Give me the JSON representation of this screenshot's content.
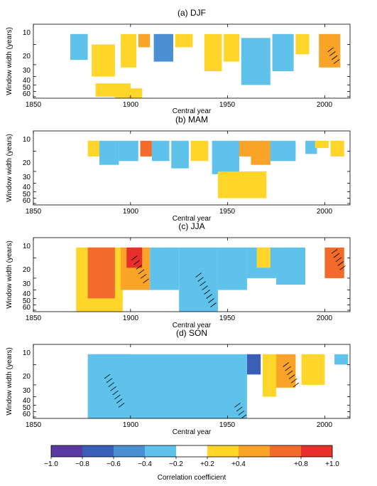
{
  "chart_data": [
    {
      "type": "heatmap",
      "title": "(a) DJF",
      "xlabel": "Central year",
      "ylabel": "Window width (years)",
      "xlim": [
        1850,
        2013
      ],
      "ylim": [
        5,
        63
      ],
      "y_scale": "log",
      "xticks": [
        1850,
        1900,
        1950,
        2000
      ],
      "yticks": [
        10,
        20,
        30,
        40,
        50,
        60
      ],
      "features": [
        {
          "x_start": 1869,
          "x_end": 1878,
          "w_top": 7,
          "w_bottom": 17,
          "value": -0.3
        },
        {
          "x_start": 1880,
          "x_end": 1892,
          "w_top": 10,
          "w_bottom": 30,
          "value": 0.3
        },
        {
          "x_start": 1895,
          "x_end": 1903,
          "w_top": 7,
          "w_bottom": 22,
          "value": 0.3
        },
        {
          "x_start": 1904,
          "x_end": 1910,
          "w_top": 7,
          "w_bottom": 11,
          "value": 0.5
        },
        {
          "x_start": 1912,
          "x_end": 1922,
          "w_top": 7,
          "w_bottom": 18,
          "value": -0.5
        },
        {
          "x_start": 1923,
          "x_end": 1932,
          "w_top": 7,
          "w_bottom": 11,
          "value": 0.3
        },
        {
          "x_start": 1938,
          "x_end": 1947,
          "w_top": 7,
          "w_bottom": 25,
          "value": 0.3
        },
        {
          "x_start": 1948,
          "x_end": 1956,
          "w_top": 7,
          "w_bottom": 18,
          "value": 0.3
        },
        {
          "x_start": 1957,
          "x_end": 1972,
          "w_top": 8,
          "w_bottom": 40,
          "value": -0.35
        },
        {
          "x_start": 1973,
          "x_end": 1984,
          "w_top": 7,
          "w_bottom": 25,
          "value": -0.3
        },
        {
          "x_start": 1985,
          "x_end": 1992,
          "w_top": 7,
          "w_bottom": 14,
          "value": 0.3
        },
        {
          "x_start": 1997,
          "x_end": 2008,
          "w_top": 7,
          "w_bottom": 22,
          "value": 0.55
        },
        {
          "x_start": 1882,
          "x_end": 1900,
          "w_top": 38,
          "w_bottom": 60,
          "value": 0.3
        },
        {
          "x_start": 1892,
          "x_end": 1906,
          "w_top": 45,
          "w_bottom": 63,
          "value": 0.3
        }
      ],
      "hatched": [
        {
          "x": 2003,
          "w_top": 12,
          "w_bottom": 18
        }
      ]
    },
    {
      "type": "heatmap",
      "title": "(b) MAM",
      "xlabel": "Central year",
      "ylabel": "Window width (years)",
      "xlim": [
        1850,
        2013
      ],
      "ylim": [
        5,
        63
      ],
      "y_scale": "log",
      "xticks": [
        1850,
        1900,
        1950,
        2000
      ],
      "yticks": [
        10,
        20,
        30,
        40,
        50,
        60
      ],
      "features": [
        {
          "x_start": 1878,
          "x_end": 1884,
          "w_top": 7,
          "w_bottom": 12,
          "value": 0.3
        },
        {
          "x_start": 1884,
          "x_end": 1894,
          "w_top": 7,
          "w_bottom": 16,
          "value": -0.3
        },
        {
          "x_start": 1894,
          "x_end": 1904,
          "w_top": 7,
          "w_bottom": 14,
          "value": -0.3
        },
        {
          "x_start": 1905,
          "x_end": 1911,
          "w_top": 7,
          "w_bottom": 12,
          "value": 0.6
        },
        {
          "x_start": 1911,
          "x_end": 1920,
          "w_top": 7,
          "w_bottom": 14,
          "value": -0.3
        },
        {
          "x_start": 1921,
          "x_end": 1930,
          "w_top": 7,
          "w_bottom": 18,
          "value": -0.3
        },
        {
          "x_start": 1931,
          "x_end": 1940,
          "w_top": 7,
          "w_bottom": 14,
          "value": 0.3
        },
        {
          "x_start": 1942,
          "x_end": 1956,
          "w_top": 7,
          "w_bottom": 22,
          "value": -0.35
        },
        {
          "x_start": 1956,
          "x_end": 1964,
          "w_top": 7,
          "w_bottom": 12,
          "value": 0.4
        },
        {
          "x_start": 1962,
          "x_end": 1972,
          "w_top": 7,
          "w_bottom": 16,
          "value": 0.55
        },
        {
          "x_start": 1972,
          "x_end": 1985,
          "w_top": 7,
          "w_bottom": 14,
          "value": -0.3
        },
        {
          "x_start": 1990,
          "x_end": 1996,
          "w_top": 7,
          "w_bottom": 11,
          "value": -0.3
        },
        {
          "x_start": 1995,
          "x_end": 2002,
          "w_top": 7,
          "w_bottom": 9,
          "value": 0.3
        },
        {
          "x_start": 2003,
          "x_end": 2010,
          "w_top": 7,
          "w_bottom": 12,
          "value": 0.3
        },
        {
          "x_start": 1945,
          "x_end": 1970,
          "w_top": 20,
          "w_bottom": 50,
          "value": 0.3
        }
      ],
      "hatched": []
    },
    {
      "type": "heatmap",
      "title": "(c) JJA",
      "xlabel": "Central year",
      "ylabel": "Window width (years)",
      "xlim": [
        1850,
        2013
      ],
      "ylim": [
        5,
        63
      ],
      "y_scale": "log",
      "xticks": [
        1850,
        1900,
        1950,
        2000
      ],
      "yticks": [
        10,
        20,
        30,
        40,
        50,
        60
      ],
      "features": [
        {
          "x_start": 1872,
          "x_end": 1896,
          "w_top": 7,
          "w_bottom": 63,
          "value": 0.35
        },
        {
          "x_start": 1878,
          "x_end": 1892,
          "w_top": 7,
          "w_bottom": 40,
          "value": 0.6
        },
        {
          "x_start": 1895,
          "x_end": 1910,
          "w_top": 7,
          "w_bottom": 30,
          "value": 0.55
        },
        {
          "x_start": 1898,
          "x_end": 1906,
          "w_top": 7,
          "w_bottom": 14,
          "value": 0.8
        },
        {
          "x_start": 1910,
          "x_end": 1925,
          "w_top": 7,
          "w_bottom": 30,
          "value": -0.3
        },
        {
          "x_start": 1925,
          "x_end": 1945,
          "w_top": 7,
          "w_bottom": 63,
          "value": -0.35
        },
        {
          "x_start": 1945,
          "x_end": 1960,
          "w_top": 7,
          "w_bottom": 30,
          "value": -0.3
        },
        {
          "x_start": 1960,
          "x_end": 1975,
          "w_top": 7,
          "w_bottom": 20,
          "value": -0.3
        },
        {
          "x_start": 1975,
          "x_end": 1990,
          "w_top": 7,
          "w_bottom": 25,
          "value": -0.3
        },
        {
          "x_start": 1965,
          "x_end": 1972,
          "w_top": 7,
          "w_bottom": 14,
          "value": 0.35
        },
        {
          "x_start": 2000,
          "x_end": 2010,
          "w_top": 7,
          "w_bottom": 20,
          "value": 0.6
        }
      ],
      "hatched": [
        {
          "x": 1902,
          "w_top": 10,
          "w_bottom": 22
        },
        {
          "x": 1935,
          "w_top": 18,
          "w_bottom": 50
        },
        {
          "x": 2005,
          "w_top": 8,
          "w_bottom": 14
        }
      ]
    },
    {
      "type": "heatmap",
      "title": "(d) SON",
      "xlabel": "Central year",
      "ylabel": "Window width (years)",
      "xlim": [
        1850,
        2013
      ],
      "ylim": [
        5,
        63
      ],
      "y_scale": "log",
      "xticks": [
        1850,
        1900,
        1950,
        2000
      ],
      "yticks": [
        10,
        20,
        30,
        40,
        50,
        60
      ],
      "features": [
        {
          "x_start": 1880,
          "x_end": 1900,
          "w_top": 7,
          "w_bottom": 55,
          "value": -0.55
        },
        {
          "x_start": 1878,
          "x_end": 1920,
          "w_top": 7,
          "w_bottom": 63,
          "value": -0.3
        },
        {
          "x_start": 1920,
          "x_end": 1960,
          "w_top": 7,
          "w_bottom": 63,
          "value": -0.3
        },
        {
          "x_start": 1960,
          "x_end": 1967,
          "w_top": 7,
          "w_bottom": 14,
          "value": -0.7
        },
        {
          "x_start": 1968,
          "x_end": 1975,
          "w_top": 7,
          "w_bottom": 30,
          "value": 0.35
        },
        {
          "x_start": 1975,
          "x_end": 1985,
          "w_top": 7,
          "w_bottom": 22,
          "value": 0.55
        },
        {
          "x_start": 1988,
          "x_end": 2000,
          "w_top": 7,
          "w_bottom": 20,
          "value": 0.3
        },
        {
          "x_start": 2005,
          "x_end": 2012,
          "w_top": 7,
          "w_bottom": 10,
          "value": -0.35
        }
      ],
      "hatched": [
        {
          "x": 1888,
          "w_top": 15,
          "w_bottom": 40
        },
        {
          "x": 1955,
          "w_top": 40,
          "w_bottom": 60
        },
        {
          "x": 1980,
          "w_top": 10,
          "w_bottom": 20
        }
      ]
    }
  ],
  "colorbar": {
    "label": "Correlation coefficient",
    "boundaries": [
      -1.0,
      -0.8,
      -0.6,
      -0.4,
      -0.2,
      0.2,
      0.4,
      0.6,
      0.8,
      1.0
    ],
    "tick_labels": [
      "−1.0",
      "−0.8",
      "−0.6",
      "−0.4",
      "−0.2",
      "+0.2",
      "+0.4",
      "+0.8",
      "+1.0"
    ],
    "tick_values": [
      -1.0,
      -0.8,
      -0.6,
      -0.4,
      -0.2,
      0.2,
      0.4,
      0.8,
      1.0
    ],
    "colors": [
      "#5a3aa0",
      "#3a5fb6",
      "#4a8fd2",
      "#5fc2ea",
      "#ffffff",
      "#ffd52a",
      "#f9a429",
      "#f36b2b",
      "#e7302b"
    ]
  }
}
